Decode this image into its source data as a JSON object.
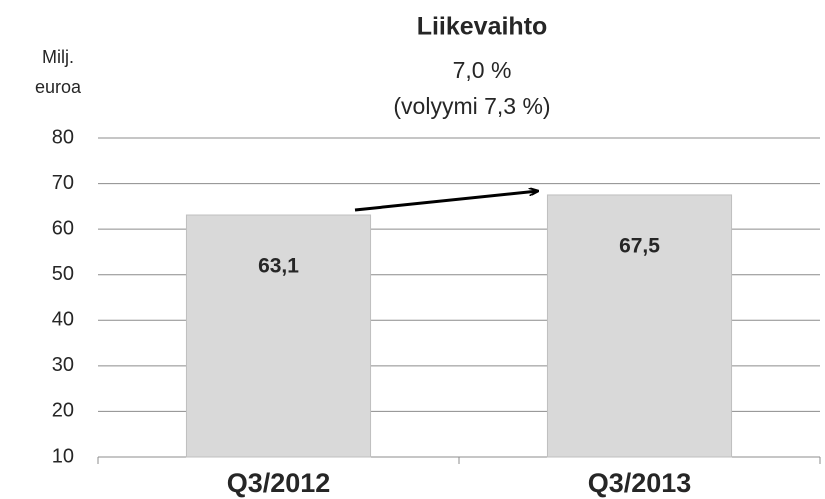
{
  "chart_data": {
    "type": "bar",
    "title": "Liikevaihto",
    "subtitle": [
      "7,0 %",
      "(volyymi 7,3 %)"
    ],
    "y_axis_label": [
      "Milj.",
      "euroa"
    ],
    "categories": [
      "Q3/2012",
      "Q3/2013"
    ],
    "values": [
      63.1,
      67.5
    ],
    "value_labels": [
      "63,1",
      "67,5"
    ],
    "color": "#d9d9d9",
    "ylim": [
      10,
      80
    ],
    "yticks": [
      10,
      20,
      30,
      40,
      50,
      60,
      70,
      80
    ],
    "grid": true
  }
}
